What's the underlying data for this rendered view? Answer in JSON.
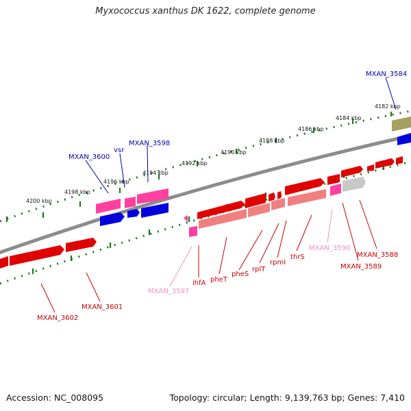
{
  "header": {
    "title": "Myxococcus xanthus DK 1622, complete genome"
  },
  "footer": {
    "accession": "Accession: NC_008095",
    "summary": "Topology: circular; Length: 9,139,763 bp; Genes: 7,410"
  },
  "colors": {
    "forward_gene": "#e00000",
    "forward_gene_light": "#f08080",
    "reverse_gene": "#0000dd",
    "highlight_gene": "#ff40a0",
    "label_blue": "#0000aa",
    "label_red": "#cc0000",
    "label_pink": "#f090c0",
    "backbone": "#8c8c8c",
    "tick": "#1a7a1a"
  },
  "scale_ticks": [
    "4182 kbp",
    "4184 kbp",
    "4186 kbp",
    "4188 kbp",
    "4190 kbp",
    "4192 kbp",
    "4194 kbp",
    "4196 kbp",
    "4198 kbp",
    "4200 kbp"
  ],
  "gene_labels": [
    {
      "text": "MXAN_3584",
      "color": "blue"
    },
    {
      "text": "MXAN_3598",
      "color": "blue"
    },
    {
      "text": "vsr",
      "color": "blue"
    },
    {
      "text": "MXAN_3600",
      "color": "blue"
    },
    {
      "text": "MXAN_3588",
      "color": "red"
    },
    {
      "text": "MXAN_3589",
      "color": "red"
    },
    {
      "text": "MXAN_3590",
      "color": "pink"
    },
    {
      "text": "thrS",
      "color": "red"
    },
    {
      "text": "rpmI",
      "color": "red"
    },
    {
      "text": "rplT",
      "color": "red"
    },
    {
      "text": "pheS",
      "color": "red"
    },
    {
      "text": "pheT",
      "color": "red"
    },
    {
      "text": "ihfA",
      "color": "red"
    },
    {
      "text": "MXAN_3597",
      "color": "pink"
    },
    {
      "text": "MXAN_3601",
      "color": "red"
    },
    {
      "text": "MXAN_3602",
      "color": "red"
    }
  ]
}
